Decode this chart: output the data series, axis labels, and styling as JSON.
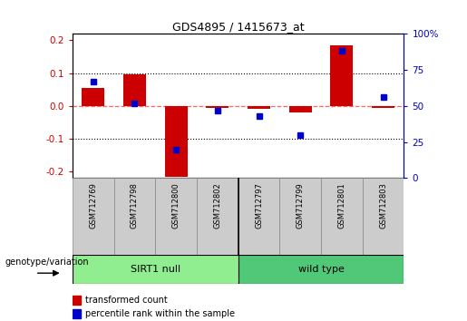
{
  "title": "GDS4895 / 1415673_at",
  "categories": [
    "GSM712769",
    "GSM712798",
    "GSM712800",
    "GSM712802",
    "GSM712797",
    "GSM712799",
    "GSM712801",
    "GSM712803"
  ],
  "red_values": [
    0.055,
    0.095,
    -0.215,
    -0.005,
    -0.008,
    -0.02,
    0.185,
    -0.005
  ],
  "blue_values_pct": [
    67,
    52,
    20,
    47,
    43,
    30,
    88,
    56
  ],
  "group1_label": "SIRT1 null",
  "group2_label": "wild type",
  "group1_indices": [
    0,
    1,
    2,
    3
  ],
  "group2_indices": [
    4,
    5,
    6,
    7
  ],
  "group1_color": "#90EE90",
  "group2_color": "#50C878",
  "ylim_left": [
    -0.22,
    0.22
  ],
  "ylim_right": [
    0,
    100
  ],
  "left_yticks": [
    -0.2,
    -0.1,
    0.0,
    0.1,
    0.2
  ],
  "right_yticks": [
    0,
    25,
    50,
    75,
    100
  ],
  "right_yticklabels": [
    "0",
    "25",
    "50",
    "75",
    "100%"
  ],
  "legend_red": "transformed count",
  "legend_blue": "percentile rank within the sample",
  "genotype_label": "genotype/variation",
  "bar_width": 0.55,
  "red_color": "#CC0000",
  "blue_color": "#0000CC",
  "zero_line_color": "#FF6666",
  "dot_grid_color": "black",
  "plot_bg": "white",
  "tick_box_color": "#CCCCCC",
  "tick_box_edge": "#888888"
}
